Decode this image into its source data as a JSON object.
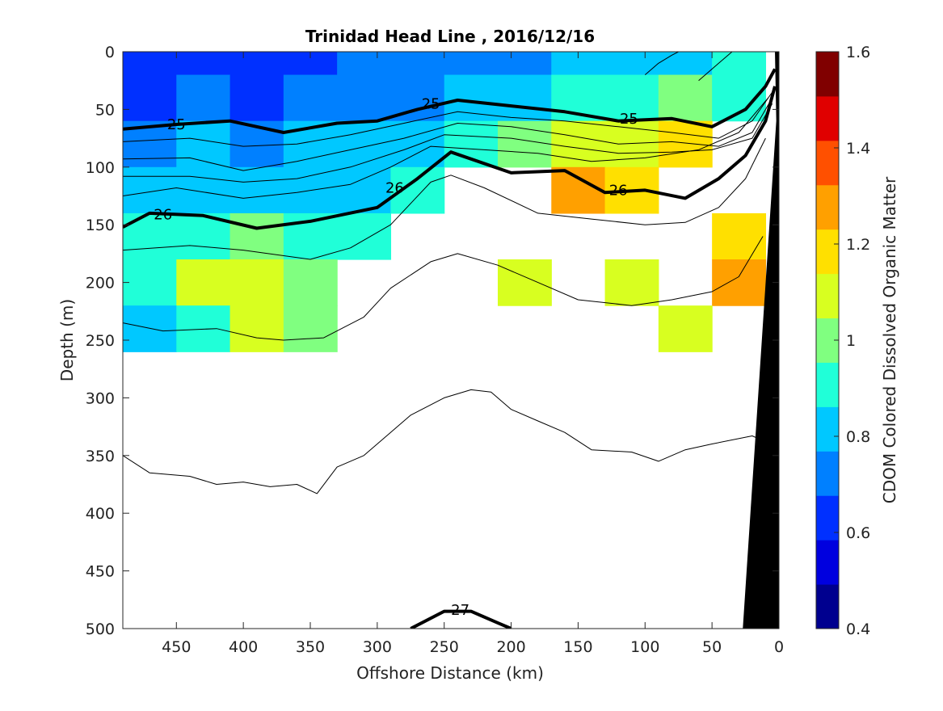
{
  "chart_data": {
    "type": "heatmap",
    "title": "Trinidad Head Line , 2016/12/16",
    "xlabel": "Offshore Distance (km)",
    "ylabel": "Depth (m)",
    "colorbar_label": "CDOM Colored Dissolved Organic Matter",
    "xlim": [
      490,
      0
    ],
    "ylim": [
      500,
      0
    ],
    "x_reversed": true,
    "y_reversed": true,
    "x_ticks": [
      450,
      400,
      350,
      300,
      250,
      200,
      150,
      100,
      50,
      0
    ],
    "y_ticks": [
      0,
      50,
      100,
      150,
      200,
      250,
      300,
      350,
      400,
      450,
      500
    ],
    "color_range": [
      0.4,
      1.6
    ],
    "colorbar_ticks": [
      0.4,
      0.6,
      0.8,
      1,
      1.2,
      1.4,
      1.6
    ],
    "colormap": [
      "#00008f",
      "#0000df",
      "#0030ff",
      "#0080ff",
      "#00c8ff",
      "#20ffd8",
      "#80ff80",
      "#d8ff20",
      "#ffe000",
      "#ffa000",
      "#ff5000",
      "#e00000",
      "#800000"
    ],
    "grid": false,
    "distance_km": [
      470,
      430,
      390,
      350,
      310,
      270,
      230,
      190,
      150,
      110,
      70,
      30
    ],
    "depth_bins_m": [
      0,
      40,
      80,
      120,
      160,
      200,
      240
    ],
    "cdom_values": [
      [
        0.62,
        0.65,
        0.6,
        0.66,
        0.68,
        0.7,
        0.72,
        0.75,
        0.78,
        0.82,
        0.85,
        0.88
      ],
      [
        0.66,
        0.7,
        0.65,
        0.7,
        0.72,
        0.74,
        0.8,
        0.85,
        0.92,
        0.95,
        0.98,
        0.95
      ],
      [
        0.72,
        0.78,
        0.74,
        0.78,
        0.8,
        0.85,
        0.95,
        1.02,
        1.1,
        1.05,
        1.15,
        null
      ],
      [
        0.82,
        0.85,
        0.8,
        0.84,
        0.86,
        0.92,
        null,
        null,
        1.32,
        1.18,
        null,
        null
      ],
      [
        0.88,
        0.92,
        1.0,
        0.95,
        0.9,
        null,
        null,
        null,
        null,
        null,
        null,
        1.2
      ],
      [
        0.9,
        1.05,
        1.12,
        1.0,
        null,
        null,
        null,
        1.1,
        null,
        1.05,
        null,
        1.25
      ],
      [
        0.85,
        0.95,
        1.1,
        0.98,
        null,
        null,
        null,
        null,
        null,
        null,
        1.08,
        null
      ]
    ],
    "contours": [
      {
        "level": 25,
        "labeled": true,
        "points": [
          [
            490,
            67
          ],
          [
            450,
            63
          ],
          [
            410,
            60
          ],
          [
            370,
            70
          ],
          [
            330,
            62
          ],
          [
            300,
            60
          ],
          [
            270,
            50
          ],
          [
            240,
            42
          ],
          [
            200,
            47
          ],
          [
            160,
            52
          ],
          [
            120,
            60
          ],
          [
            80,
            58
          ],
          [
            50,
            65
          ],
          [
            25,
            50
          ],
          [
            10,
            30
          ],
          [
            3,
            15
          ]
        ]
      },
      {
        "level": 26,
        "labeled": true,
        "points": [
          [
            490,
            152
          ],
          [
            470,
            140
          ],
          [
            430,
            142
          ],
          [
            390,
            153
          ],
          [
            350,
            147
          ],
          [
            300,
            135
          ],
          [
            270,
            110
          ],
          [
            245,
            87
          ],
          [
            200,
            105
          ],
          [
            160,
            103
          ],
          [
            130,
            122
          ],
          [
            100,
            120
          ],
          [
            70,
            127
          ],
          [
            45,
            110
          ],
          [
            25,
            90
          ],
          [
            10,
            60
          ],
          [
            3,
            30
          ]
        ]
      },
      {
        "level": 27,
        "labeled": true,
        "points": [
          [
            275,
            500
          ],
          [
            250,
            485
          ],
          [
            230,
            485
          ],
          [
            210,
            495
          ],
          [
            200,
            500
          ]
        ]
      },
      {
        "level": 25.2,
        "labeled": false,
        "points": [
          [
            490,
            78
          ],
          [
            440,
            75
          ],
          [
            400,
            82
          ],
          [
            360,
            80
          ],
          [
            320,
            72
          ],
          [
            280,
            62
          ],
          [
            240,
            52
          ],
          [
            200,
            57
          ],
          [
            160,
            60
          ],
          [
            120,
            65
          ],
          [
            80,
            70
          ],
          [
            45,
            75
          ],
          [
            20,
            60
          ],
          [
            5,
            35
          ]
        ]
      },
      {
        "level": 25.4,
        "labeled": false,
        "points": [
          [
            490,
            93
          ],
          [
            440,
            92
          ],
          [
            400,
            103
          ],
          [
            360,
            95
          ],
          [
            320,
            85
          ],
          [
            280,
            75
          ],
          [
            240,
            62
          ],
          [
            200,
            65
          ],
          [
            160,
            72
          ],
          [
            120,
            80
          ],
          [
            80,
            78
          ],
          [
            45,
            82
          ],
          [
            20,
            70
          ],
          [
            5,
            40
          ]
        ]
      },
      {
        "level": 25.6,
        "labeled": false,
        "points": [
          [
            490,
            108
          ],
          [
            440,
            108
          ],
          [
            400,
            113
          ],
          [
            360,
            110
          ],
          [
            320,
            100
          ],
          [
            280,
            85
          ],
          [
            250,
            72
          ],
          [
            200,
            75
          ],
          [
            160,
            82
          ],
          [
            120,
            88
          ],
          [
            80,
            87
          ],
          [
            50,
            85
          ],
          [
            20,
            75
          ],
          [
            5,
            45
          ]
        ]
      },
      {
        "level": 25.8,
        "labeled": false,
        "points": [
          [
            490,
            125
          ],
          [
            450,
            118
          ],
          [
            400,
            127
          ],
          [
            360,
            122
          ],
          [
            320,
            115
          ],
          [
            290,
            100
          ],
          [
            260,
            82
          ],
          [
            220,
            85
          ],
          [
            180,
            88
          ],
          [
            140,
            95
          ],
          [
            100,
            92
          ],
          [
            60,
            85
          ],
          [
            30,
            70
          ],
          [
            8,
            40
          ]
        ]
      },
      {
        "level": 26.2,
        "labeled": false,
        "points": [
          [
            490,
            172
          ],
          [
            440,
            168
          ],
          [
            400,
            172
          ],
          [
            350,
            180
          ],
          [
            320,
            170
          ],
          [
            290,
            150
          ],
          [
            260,
            113
          ],
          [
            245,
            107
          ],
          [
            220,
            118
          ],
          [
            180,
            140
          ],
          [
            140,
            145
          ],
          [
            100,
            150
          ],
          [
            70,
            148
          ],
          [
            45,
            135
          ],
          [
            25,
            110
          ],
          [
            10,
            75
          ]
        ]
      },
      {
        "level": 26.4,
        "labeled": false,
        "points": [
          [
            490,
            235
          ],
          [
            460,
            242
          ],
          [
            420,
            240
          ],
          [
            390,
            248
          ],
          [
            370,
            250
          ],
          [
            340,
            248
          ],
          [
            310,
            230
          ],
          [
            290,
            205
          ],
          [
            260,
            182
          ],
          [
            240,
            175
          ],
          [
            210,
            185
          ],
          [
            180,
            200
          ],
          [
            150,
            215
          ],
          [
            110,
            220
          ],
          [
            80,
            215
          ],
          [
            50,
            208
          ],
          [
            30,
            195
          ],
          [
            12,
            160
          ]
        ]
      },
      {
        "level": 26.6,
        "labeled": false,
        "points": [
          [
            490,
            350
          ],
          [
            470,
            365
          ],
          [
            440,
            368
          ],
          [
            420,
            375
          ],
          [
            400,
            373
          ],
          [
            380,
            377
          ],
          [
            360,
            375
          ],
          [
            345,
            383
          ],
          [
            330,
            360
          ],
          [
            310,
            350
          ],
          [
            290,
            330
          ],
          [
            275,
            315
          ],
          [
            250,
            300
          ],
          [
            230,
            293
          ],
          [
            215,
            295
          ],
          [
            200,
            310
          ],
          [
            180,
            320
          ],
          [
            160,
            330
          ],
          [
            140,
            345
          ],
          [
            110,
            347
          ],
          [
            90,
            355
          ],
          [
            70,
            345
          ],
          [
            50,
            340
          ],
          [
            20,
            333
          ],
          [
            10,
            338
          ]
        ]
      },
      {
        "level": 24.8,
        "labeled": false,
        "points": [
          [
            100,
            20
          ],
          [
            90,
            10
          ],
          [
            80,
            3
          ],
          [
            75,
            0
          ]
        ]
      },
      {
        "level": 24.6,
        "labeled": false,
        "points": [
          [
            60,
            25
          ],
          [
            45,
            10
          ],
          [
            35,
            0
          ]
        ]
      }
    ]
  }
}
